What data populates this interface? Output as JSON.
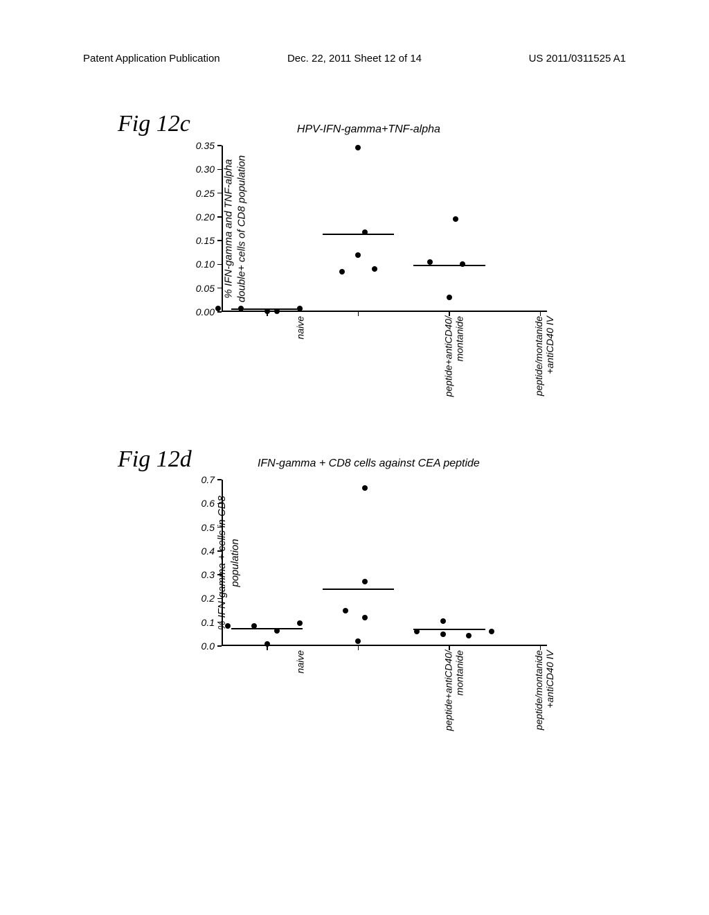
{
  "header": {
    "left": "Patent Application Publication",
    "center": "Dec. 22, 2011  Sheet 12 of 14",
    "right": "US 2011/0311525 A1"
  },
  "fig12c": {
    "label": "Fig 12c",
    "title": "HPV-IFN-gamma+TNF-alpha",
    "ylabel_line1": "% IFN-gamma and TNF-alpha",
    "ylabel_line2": "double+ cells of CD8 population",
    "ylim": [
      0.0,
      0.35
    ],
    "yticks": [
      0.0,
      0.05,
      0.1,
      0.15,
      0.2,
      0.25,
      0.3,
      0.35
    ],
    "ytick_labels": [
      "0.00",
      "0.05",
      "0.10",
      "0.15",
      "0.20",
      "0.25",
      "0.30",
      "0.35"
    ],
    "categories": [
      {
        "key": "naive",
        "label": "naive"
      },
      {
        "key": "pep_anticd40_mont",
        "label_line1": "peptide+antiCD40/",
        "label_line2": "montanide"
      },
      {
        "key": "pep_mont_anticd40iv",
        "label_line1": "peptide/montanide",
        "label_line2": "+antiCD40 IV"
      }
    ],
    "points": {
      "naive": [
        {
          "y": 0.008,
          "jx": -0.15
        },
        {
          "y": 0.008,
          "jx": -0.08
        },
        {
          "y": 0.002,
          "jx": 0.0
        },
        {
          "y": 0.002,
          "jx": 0.03
        },
        {
          "y": 0.008,
          "jx": 0.1
        }
      ],
      "pep_anticd40_mont": [
        {
          "y": 0.345,
          "jx": 0.0
        },
        {
          "y": 0.168,
          "jx": 0.02
        },
        {
          "y": 0.12,
          "jx": 0.0
        },
        {
          "y": 0.085,
          "jx": -0.05
        },
        {
          "y": 0.09,
          "jx": 0.05
        }
      ],
      "pep_mont_anticd40iv": [
        {
          "y": 0.195,
          "jx": 0.02
        },
        {
          "y": 0.105,
          "jx": -0.06
        },
        {
          "y": 0.1,
          "jx": 0.04
        },
        {
          "y": 0.03,
          "jx": 0.0
        }
      ]
    },
    "medians": {
      "naive": 0.006,
      "pep_anticd40_mont": 0.163,
      "pep_mont_anticd40iv": 0.098
    },
    "cat_x": {
      "naive": 0.14,
      "pep_anticd40_mont": 0.42,
      "pep_mont_anticd40iv": 0.7,
      "blank": 0.98
    },
    "median_halfwidth": 0.11,
    "point_color": "#000000",
    "axis_color": "#000000",
    "bg": "#ffffff",
    "fontsize_tick": 14,
    "fontsize_title": 16
  },
  "fig12d": {
    "label": "Fig 12d",
    "title": "IFN-gamma + CD8 cells against CEA peptide",
    "ylabel_line1": "% IFN-gamma + cells in CD8",
    "ylabel_line2": "population",
    "ylim": [
      0.0,
      0.7
    ],
    "yticks": [
      0.0,
      0.1,
      0.2,
      0.3,
      0.4,
      0.5,
      0.6,
      0.7
    ],
    "ytick_labels": [
      "0.0",
      "0.1",
      "0.2",
      "0.3",
      "0.4",
      "0.5",
      "0.6",
      "0.7"
    ],
    "categories": [
      {
        "key": "naive",
        "label": "naive"
      },
      {
        "key": "pep_anticd40_mont",
        "label_line1": "peptide+antiCD40/",
        "label_line2": "montanide"
      },
      {
        "key": "pep_mont_anticd40iv",
        "label_line1": "peptide/montanide",
        "label_line2": "+antiCD40 IV"
      }
    ],
    "points": {
      "naive": [
        {
          "y": 0.085,
          "jx": -0.12
        },
        {
          "y": 0.085,
          "jx": -0.04
        },
        {
          "y": 0.065,
          "jx": 0.03
        },
        {
          "y": 0.095,
          "jx": 0.1
        },
        {
          "y": 0.01,
          "jx": 0.0
        }
      ],
      "pep_anticd40_mont": [
        {
          "y": 0.665,
          "jx": 0.02
        },
        {
          "y": 0.27,
          "jx": 0.02
        },
        {
          "y": 0.15,
          "jx": -0.04
        },
        {
          "y": 0.12,
          "jx": 0.02
        },
        {
          "y": 0.02,
          "jx": 0.0
        }
      ],
      "pep_mont_anticd40iv": [
        {
          "y": 0.105,
          "jx": -0.02
        },
        {
          "y": 0.06,
          "jx": -0.1
        },
        {
          "y": 0.05,
          "jx": -0.02
        },
        {
          "y": 0.045,
          "jx": 0.06
        },
        {
          "y": 0.06,
          "jx": 0.13
        }
      ]
    },
    "medians": {
      "naive": 0.072,
      "pep_anticd40_mont": 0.24,
      "pep_mont_anticd40iv": 0.07
    },
    "cat_x": {
      "naive": 0.14,
      "pep_anticd40_mont": 0.42,
      "pep_mont_anticd40iv": 0.7,
      "blank": 0.98
    },
    "median_halfwidth": 0.11,
    "point_color": "#000000",
    "axis_color": "#000000",
    "bg": "#ffffff",
    "fontsize_tick": 14,
    "fontsize_title": 16
  }
}
